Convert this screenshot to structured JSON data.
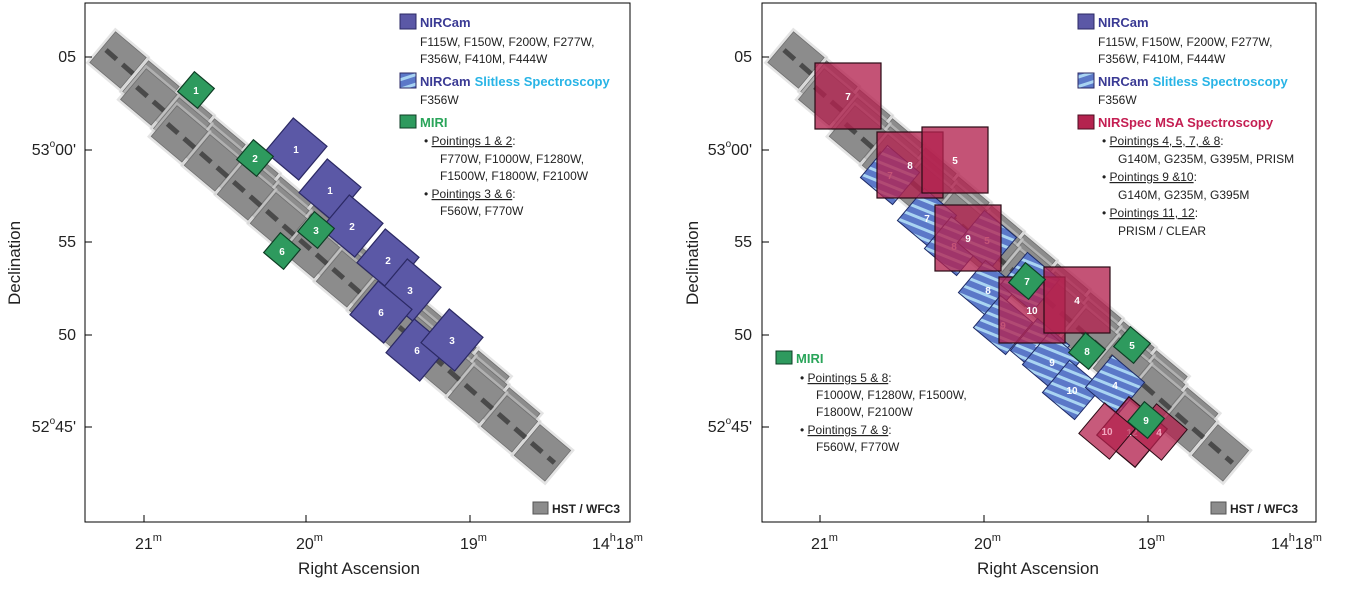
{
  "colors": {
    "hst": "#8c8c8c",
    "hst_stroke": "#6f6f6f",
    "hst_glow": "#cdcdcd",
    "nircam": "#5b58a6",
    "nircam_stroke": "#2b2964",
    "slitless_bg": "#5b78c8",
    "slitless_stripe": "#a9d4f2",
    "nirspec": "#b4234f",
    "miri": "#2e9a5e",
    "miri_stroke": "#0e3d24",
    "cyan_text": "#28b4e6",
    "nirspec_text": "#c41e52",
    "miri_text": "#2aa55a",
    "nircam_text": "#3a3a94"
  },
  "axes": {
    "xlabel": "Right Ascension",
    "ylabel": "Declination",
    "x_ticks": [
      {
        "m": "21",
        "sup": "m"
      },
      {
        "m": "20",
        "sup": "m"
      },
      {
        "m": "19",
        "sup": "m"
      }
    ],
    "x_last_tick": {
      "h": "14",
      "hsup": "h",
      "m": "18",
      "msup": "m"
    },
    "y_ticks": [
      {
        "deg": "",
        "sup": "",
        "min": "05"
      },
      {
        "deg": "53",
        "sup": "o",
        "min": "00'"
      },
      {
        "deg": "",
        "sup": "",
        "min": "55"
      },
      {
        "deg": "",
        "sup": "",
        "min": "50"
      },
      {
        "deg": "52",
        "sup": "o",
        "min": "45'"
      }
    ]
  },
  "left_panel": {
    "legend": {
      "nircam": {
        "title": "NIRCam",
        "lines": [
          "F115W, F150W, F200W, F277W,",
          "F356W, F410M, F444W"
        ]
      },
      "slitless": {
        "title1": "NIRCam",
        "title2": "Slitless Spectroscopy",
        "lines": [
          "F356W"
        ]
      },
      "miri": {
        "title": "MIRI",
        "groups": [
          {
            "head": "Pointings 1 & 2",
            "tail": ":",
            "lines": [
              "F770W, F1000W, F1280W,",
              "F1500W, F1800W, F2100W"
            ]
          },
          {
            "head": "Pointings 3 & 6",
            "tail": ":",
            "lines": [
              "F560W, F770W"
            ]
          }
        ]
      }
    },
    "hst_label": "HST / WFC3",
    "nircam_labels": [
      "1",
      "1",
      "2",
      "2",
      "3",
      "6",
      "6",
      "3"
    ],
    "miri_labels": [
      "1",
      "2",
      "3",
      "6"
    ]
  },
  "right_panel": {
    "legend": {
      "nircam": {
        "title": "NIRCam",
        "lines": [
          "F115W, F150W, F200W, F277W,",
          "F356W, F410M, F444W"
        ]
      },
      "slitless": {
        "title1": "NIRCam",
        "title2": "Slitless Spectroscopy",
        "lines": [
          "F356W"
        ]
      },
      "nirspec": {
        "title": "NIRSpec MSA Spectroscopy",
        "groups": [
          {
            "head": "Pointings 4, 5, 7, & 8",
            "tail": ":",
            "lines": [
              "G140M, G235M, G395M, PRISM"
            ]
          },
          {
            "head": "Pointings 9 &10",
            "tail": ":",
            "lines": [
              "G140M, G235M, G395M"
            ]
          },
          {
            "head": "Pointings 11, 12",
            "tail": ":",
            "lines": [
              "PRISM / CLEAR"
            ]
          }
        ]
      }
    },
    "miri_legend": {
      "title": "MIRI",
      "groups": [
        {
          "head": "Pointings 5 & 8",
          "tail": ":",
          "lines": [
            "F1000W, F1280W, F1500W,",
            "F1800W, F2100W"
          ]
        },
        {
          "head": "Pointings 7 & 9",
          "tail": ":",
          "lines": [
            "F560W, F770W"
          ]
        }
      ]
    },
    "hst_label": "HST / WFC3",
    "nirspec_labels": [
      "7",
      "8",
      "5",
      "9",
      "10",
      "4",
      "12"
    ],
    "slitless_labels": [
      "7",
      "7",
      "8",
      "5",
      "8",
      "9",
      "10",
      "11",
      "9",
      "10",
      "4"
    ],
    "miri_labels": [
      "7",
      "8",
      "5",
      "9"
    ],
    "faint_labels": [
      "4",
      "10"
    ]
  }
}
